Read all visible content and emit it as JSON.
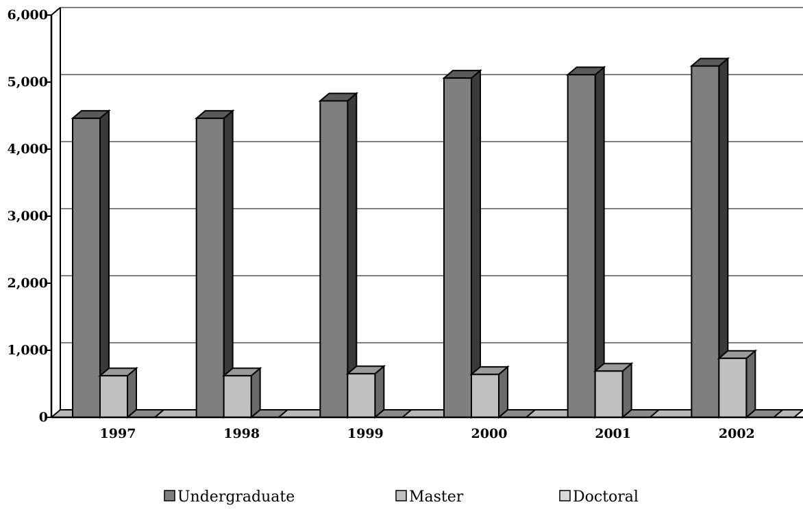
{
  "chart_data": {
    "type": "bar",
    "three_d": true,
    "categories": [
      "1997",
      "1998",
      "1999",
      "2000",
      "2001",
      "2002"
    ],
    "series": [
      {
        "name": "Undergraduate",
        "values": [
          4460,
          4460,
          4720,
          5060,
          5110,
          5240
        ],
        "color": "#7f7f7f",
        "side_color": "#3a3a3a",
        "top_color": "#5a5a5a"
      },
      {
        "name": "Master",
        "values": [
          620,
          620,
          650,
          640,
          690,
          880
        ],
        "color": "#c0c0c0",
        "side_color": "#6a6a6a",
        "top_color": "#9a9a9a"
      },
      {
        "name": "Doctoral",
        "values": [
          0,
          0,
          0,
          0,
          0,
          0
        ],
        "color": "#d9d9d9",
        "side_color": "#8a8a8a",
        "top_color": "#b0b0b0"
      }
    ],
    "yticks": [
      "0",
      "1,000",
      "2,000",
      "3,000",
      "4,000",
      "5,000",
      "6,000"
    ],
    "ylim": [
      0,
      6000
    ],
    "grid": true,
    "legend_position": "bottom"
  }
}
